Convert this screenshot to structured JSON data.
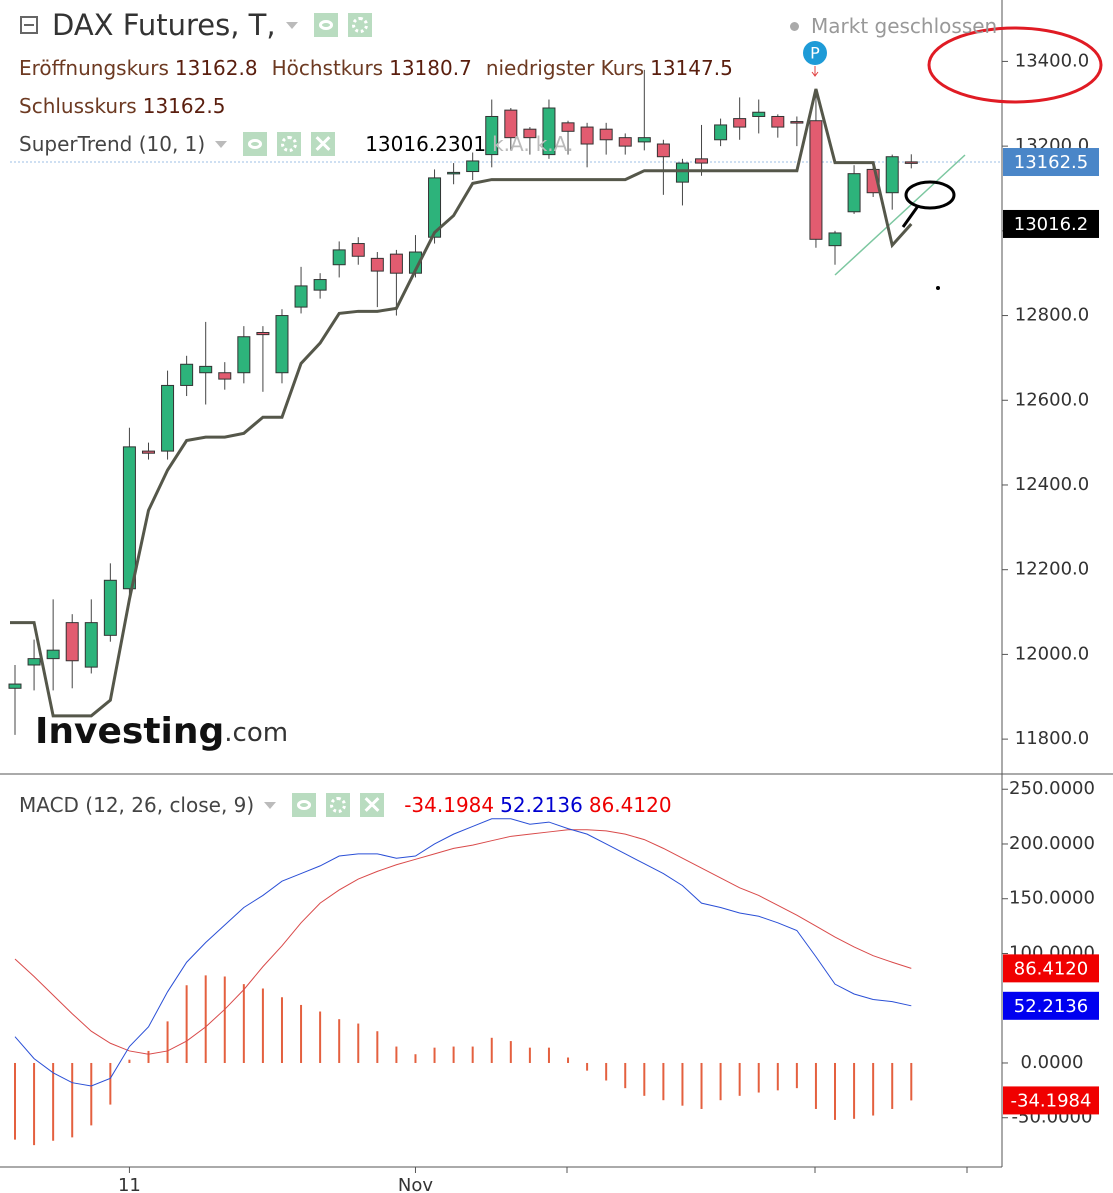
{
  "header": {
    "title": "DAX Futures, T,",
    "status": "Markt geschlossen"
  },
  "chart_data": [
    {
      "type": "candlestick",
      "ohlc_labels": [
        "Eröffnungskurs",
        "Höchstkurs",
        "niedrigster Kurs",
        "Schlusskurs"
      ],
      "open": [
        11920,
        11975,
        11990,
        12075,
        11970,
        12045,
        12155,
        12480,
        12480,
        12635,
        12665,
        12665,
        12665,
        12760,
        12665,
        12820,
        12860,
        12920,
        12970,
        12935,
        12945,
        12900,
        12985,
        13135,
        13140,
        13180,
        13285,
        13240,
        13180,
        13255,
        13245,
        13240,
        13220,
        13210,
        13205,
        13115,
        13170,
        13215,
        13265,
        13270,
        13270,
        13258,
        13260,
        12965,
        13045,
        13145,
        13090,
        13162.8
      ],
      "high": [
        11975,
        12035,
        12130,
        12095,
        12130,
        12215,
        12535,
        12500,
        12670,
        12705,
        12785,
        12690,
        12775,
        12775,
        12815,
        12915,
        12900,
        12975,
        12985,
        12950,
        12955,
        12990,
        13145,
        13160,
        13185,
        13310,
        13290,
        13245,
        13310,
        13260,
        13255,
        13255,
        13230,
        13380,
        13215,
        13170,
        13250,
        13265,
        13315,
        13310,
        13275,
        13270,
        13320,
        13000,
        13155,
        13150,
        13180,
        13180.7
      ],
      "low": [
        11810,
        11915,
        11915,
        11920,
        11955,
        12030,
        12135,
        12460,
        12460,
        12610,
        12590,
        12625,
        12640,
        12620,
        12640,
        12805,
        12840,
        12890,
        12920,
        12820,
        12800,
        12890,
        12970,
        13110,
        13120,
        13150,
        13190,
        13180,
        13170,
        13180,
        13150,
        13180,
        13180,
        13190,
        13085,
        13060,
        13130,
        13200,
        13215,
        13230,
        13220,
        13200,
        12960,
        12920,
        13040,
        13080,
        13050,
        13147.5
      ],
      "close": [
        11930,
        11990,
        12010,
        11985,
        12075,
        12175,
        12490,
        12475,
        12635,
        12685,
        12680,
        12650,
        12750,
        12755,
        12800,
        12870,
        12885,
        12955,
        12940,
        12905,
        12900,
        12950,
        13125,
        13138,
        13165,
        13270,
        13220,
        13220,
        13290,
        13235,
        13205,
        13215,
        13200,
        13220,
        13175,
        13160,
        13160,
        13250,
        13245,
        13280,
        13245,
        13255,
        12980,
        12995,
        13135,
        13090,
        13175,
        13162.5
      ],
      "up_color": "#2db37b",
      "down_color": "#e25c70",
      "last_price_color": "#4a86c8",
      "series": [
        {
          "name": "SuperTrend (10, 1)",
          "color": "#55574a",
          "values": [
            12075,
            12075,
            11855,
            11855,
            11855,
            11892,
            12130,
            12340,
            12435,
            12505,
            12513,
            12513,
            12522,
            12560,
            12560,
            12687,
            12735,
            12805,
            12810,
            12810,
            12817,
            12907,
            12996,
            13036,
            13112,
            13121,
            13121,
            13121,
            13121,
            13121,
            13121,
            13121,
            13121,
            13142,
            13142,
            13142,
            13142,
            13142,
            13142,
            13142,
            13142,
            13142,
            13335,
            13161,
            13161,
            13161,
            12966,
            13016.2301
          ],
          "last_label": "13016.2",
          "status_labels": [
            "k.A.",
            "k.A."
          ]
        }
      ],
      "ylim": [
        11720,
        13545
      ],
      "yticks": [
        {
          "value": 11800,
          "label": "11800.0"
        },
        {
          "value": 12000,
          "label": "12000.0"
        },
        {
          "value": 12200,
          "label": "12200.0"
        },
        {
          "value": 12400,
          "label": "12400.0"
        },
        {
          "value": 12600,
          "label": "12600.0"
        },
        {
          "value": 12800,
          "label": "12800.0"
        },
        {
          "value": 13000,
          "label": "13000.0"
        },
        {
          "value": 13200,
          "label": "13200.0"
        },
        {
          "value": 13400,
          "label": "13400.0"
        }
      ],
      "marker": "P",
      "logo": [
        "Investing",
        ".com"
      ]
    },
    {
      "type": "macd",
      "title": "MACD (12, 26, close, 9)",
      "categories": [
        null,
        null,
        null,
        null,
        null,
        null,
        "11",
        null,
        null,
        null,
        null,
        null,
        null,
        null,
        null,
        null,
        null,
        null,
        null,
        null,
        null,
        "Nov",
        null,
        null,
        null,
        null,
        null,
        null,
        null,
        null,
        null,
        null,
        null,
        null,
        null,
        null,
        null,
        null,
        null,
        null,
        null,
        null,
        null,
        null,
        null,
        null,
        null,
        null
      ],
      "histogram": {
        "color": "#e4603f",
        "values": [
          -70,
          -75,
          -71,
          -68,
          -57,
          -38,
          3,
          11,
          38,
          71,
          80,
          79,
          72,
          68,
          60,
          53,
          47,
          40,
          36,
          29,
          15,
          8,
          14,
          15,
          15,
          23,
          20,
          14,
          14,
          5,
          -7,
          -16,
          -23,
          -30,
          -34,
          -39,
          -42,
          -34,
          -30,
          -27,
          -25,
          -23,
          -42,
          -52,
          -51,
          -48,
          -42,
          -34.1984
        ],
        "last_label": "-34.1984",
        "tag_color": "#f00000"
      },
      "macd": {
        "color": "#2a4fd6",
        "values": [
          24,
          4,
          -9,
          -18,
          -21,
          -14,
          15,
          33,
          65,
          92,
          110,
          126,
          142,
          153,
          166,
          173,
          180,
          189,
          191,
          191,
          187,
          189,
          200,
          209,
          216,
          223,
          223,
          218,
          220,
          214,
          209,
          200,
          191,
          182,
          173,
          162,
          146,
          142,
          137,
          134,
          128,
          121,
          97,
          72,
          63,
          58,
          56,
          52.2136
        ],
        "last_label": "52.2136",
        "tag_color": "#0000f0"
      },
      "signal": {
        "color": "#d94a4a",
        "values": [
          95,
          79,
          62,
          45,
          29,
          18,
          11,
          8,
          11,
          20,
          33,
          49,
          67,
          88,
          107,
          128,
          146,
          158,
          168,
          175,
          181,
          186,
          191,
          196,
          199,
          203,
          207,
          209,
          211,
          213,
          213,
          212,
          209,
          204,
          196,
          187,
          178,
          169,
          160,
          153,
          144,
          135,
          125,
          115,
          106,
          98,
          92,
          86.412
        ],
        "last_label": "86.4120",
        "tag_color": "#f00000"
      },
      "ylim": [
        -95,
        263
      ],
      "yticks": [
        {
          "value": 250,
          "label": "250.0000"
        },
        {
          "value": 200,
          "label": "200.0000"
        },
        {
          "value": 150,
          "label": "150.0000"
        },
        {
          "value": 100,
          "label": "100.0000"
        },
        {
          "value": 0,
          "label": "0.0000"
        },
        {
          "value": -50,
          "label": "-50.0000"
        }
      ]
    }
  ]
}
